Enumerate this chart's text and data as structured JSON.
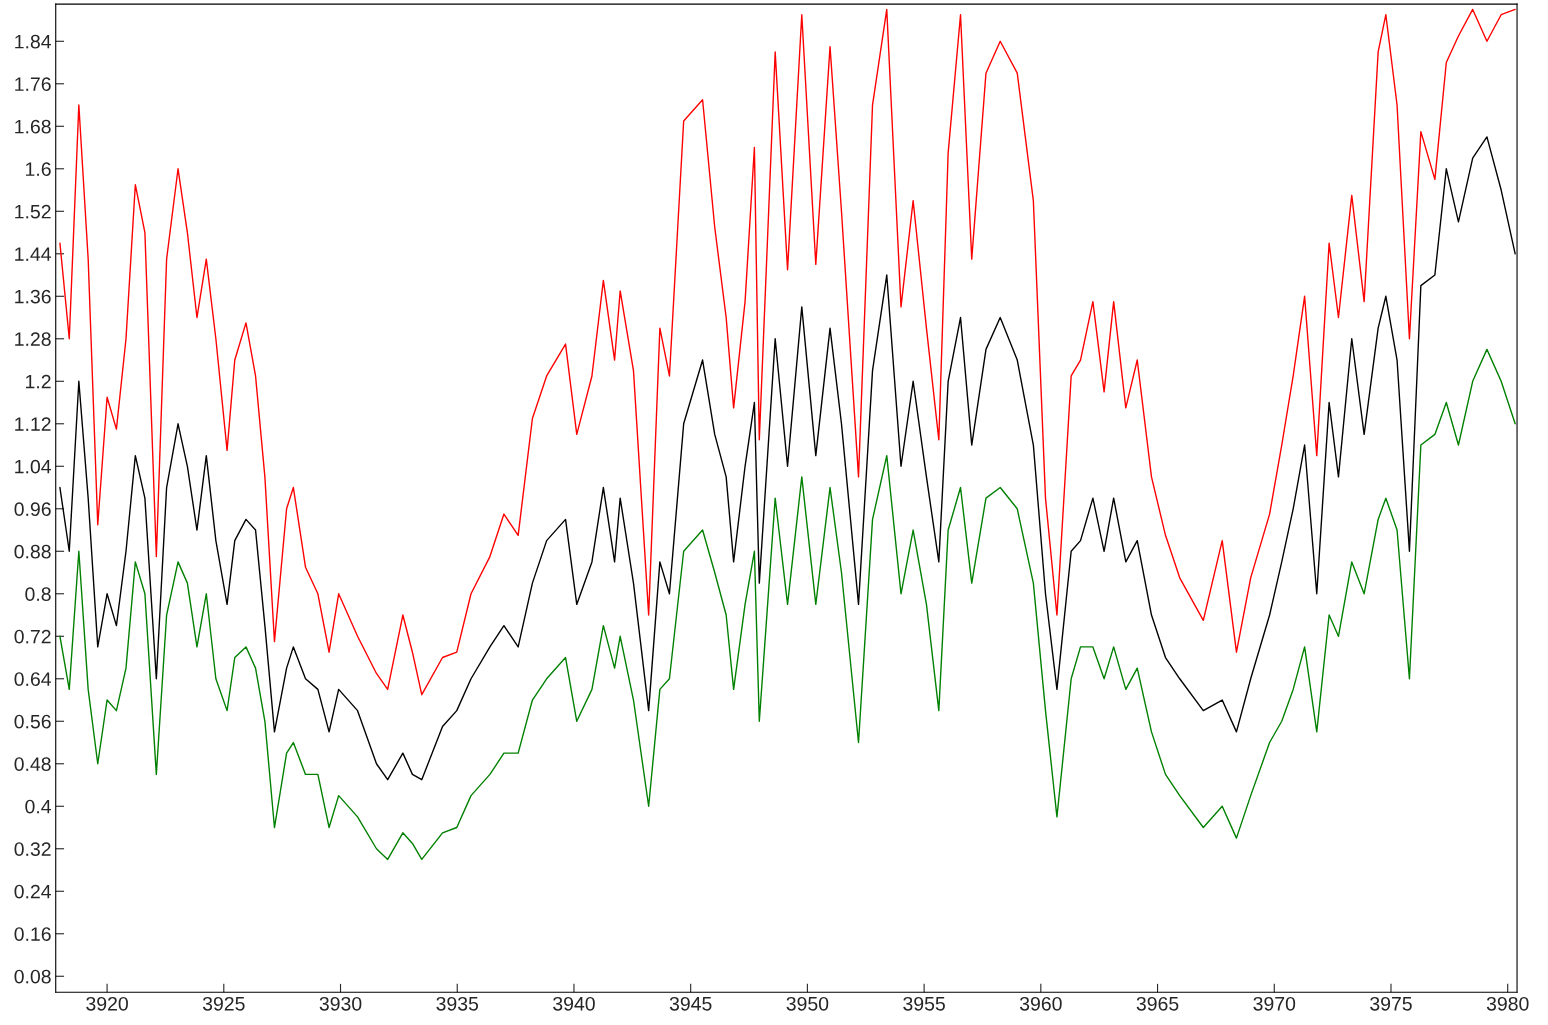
{
  "chart_data": {
    "type": "line",
    "x": [
      3917.98,
      3918.38,
      3918.79,
      3919.19,
      3919.6,
      3920,
      3920.4,
      3920.81,
      3921.21,
      3921.62,
      3922.11,
      3922.55,
      3923.04,
      3923.44,
      3923.85,
      3924.25,
      3924.66,
      3925.14,
      3925.47,
      3925.95,
      3926.36,
      3926.76,
      3927.17,
      3927.69,
      3927.98,
      3928.5,
      3929.03,
      3929.51,
      3929.92,
      3930.73,
      3931.54,
      3932.02,
      3932.67,
      3933.08,
      3933.48,
      3934.37,
      3934.98,
      3935.59,
      3936.4,
      3937,
      3937.61,
      3938.22,
      3938.83,
      3939.64,
      3940.12,
      3940.77,
      3941.26,
      3941.74,
      3941.98,
      3942.55,
      3943.2,
      3943.68,
      3944.09,
      3944.7,
      3945.51,
      3946.03,
      3946.52,
      3946.84,
      3947.33,
      3947.73,
      3947.94,
      3948.62,
      3949.15,
      3949.76,
      3950.36,
      3950.97,
      3951.46,
      3952.19,
      3952.79,
      3953.4,
      3954.01,
      3954.53,
      3955.1,
      3955.63,
      3956.03,
      3956.56,
      3957.04,
      3957.65,
      3958.26,
      3958.99,
      3959.68,
      3960.2,
      3960.69,
      3961.3,
      3961.7,
      3962.23,
      3962.71,
      3963.12,
      3963.64,
      3964.13,
      3964.74,
      3965.34,
      3965.95,
      3966.96,
      3967.77,
      3968.38,
      3968.99,
      3969.8,
      3970.32,
      3970.81,
      3971.3,
      3971.82,
      3972.35,
      3972.75,
      3973.32,
      3973.85,
      3974.45,
      3974.78,
      3975.26,
      3975.79,
      3976.28,
      3976.88,
      3977.37,
      3977.89,
      3978.5,
      3979.11,
      3979.72,
      3980.32
    ],
    "series": [
      {
        "color": "#ff0000",
        "values": [
          1.46,
          1.28,
          1.72,
          1.43,
          0.93,
          1.17,
          1.11,
          1.28,
          1.57,
          1.48,
          0.87,
          1.43,
          1.6,
          1.48,
          1.32,
          1.43,
          1.28,
          1.07,
          1.24,
          1.31,
          1.21,
          1.02,
          0.71,
          0.96,
          1.0,
          0.85,
          0.8,
          0.69,
          0.8,
          0.72,
          0.65,
          0.62,
          0.76,
          0.69,
          0.61,
          0.68,
          0.69,
          0.8,
          0.87,
          0.95,
          0.91,
          1.13,
          1.21,
          1.27,
          1.1,
          1.21,
          1.39,
          1.24,
          1.37,
          1.22,
          0.76,
          1.3,
          1.21,
          1.69,
          1.73,
          1.49,
          1.32,
          1.15,
          1.35,
          1.64,
          1.09,
          1.82,
          1.41,
          1.89,
          1.42,
          1.83,
          1.52,
          1.02,
          1.72,
          1.9,
          1.34,
          1.54,
          1.3,
          1.09,
          1.63,
          1.89,
          1.43,
          1.78,
          1.84,
          1.78,
          1.54,
          0.98,
          0.76,
          1.21,
          1.24,
          1.35,
          1.18,
          1.35,
          1.15,
          1.24,
          1.02,
          0.91,
          0.83,
          0.75,
          0.9,
          0.69,
          0.83,
          0.95,
          1.08,
          1.21,
          1.36,
          1.06,
          1.46,
          1.32,
          1.55,
          1.35,
          1.82,
          1.89,
          1.72,
          1.28,
          1.67,
          1.58,
          1.8,
          1.85,
          1.9,
          1.84,
          1.89,
          1.9
        ]
      },
      {
        "color": "#000000",
        "values": [
          1.0,
          0.88,
          1.2,
          0.98,
          0.7,
          0.8,
          0.74,
          0.88,
          1.06,
          0.98,
          0.64,
          1.0,
          1.12,
          1.04,
          0.92,
          1.06,
          0.9,
          0.78,
          0.9,
          0.94,
          0.92,
          0.74,
          0.54,
          0.66,
          0.7,
          0.64,
          0.62,
          0.54,
          0.62,
          0.58,
          0.48,
          0.45,
          0.5,
          0.46,
          0.45,
          0.55,
          0.58,
          0.64,
          0.7,
          0.74,
          0.7,
          0.82,
          0.9,
          0.94,
          0.78,
          0.86,
          1.0,
          0.86,
          0.98,
          0.82,
          0.58,
          0.86,
          0.8,
          1.12,
          1.24,
          1.1,
          1.02,
          0.86,
          1.04,
          1.16,
          0.82,
          1.28,
          1.04,
          1.34,
          1.06,
          1.3,
          1.12,
          0.78,
          1.22,
          1.4,
          1.04,
          1.2,
          1.02,
          0.86,
          1.2,
          1.32,
          1.08,
          1.26,
          1.32,
          1.24,
          1.08,
          0.8,
          0.62,
          0.88,
          0.9,
          0.98,
          0.88,
          0.98,
          0.86,
          0.9,
          0.76,
          0.68,
          0.64,
          0.58,
          0.6,
          0.54,
          0.64,
          0.76,
          0.86,
          0.96,
          1.08,
          0.8,
          1.16,
          1.02,
          1.28,
          1.1,
          1.3,
          1.36,
          1.24,
          0.88,
          1.38,
          1.4,
          1.6,
          1.5,
          1.62,
          1.66,
          1.56,
          1.44
        ]
      },
      {
        "color": "#008000",
        "values": [
          0.72,
          0.62,
          0.88,
          0.62,
          0.48,
          0.6,
          0.58,
          0.66,
          0.86,
          0.8,
          0.46,
          0.76,
          0.86,
          0.82,
          0.7,
          0.8,
          0.64,
          0.58,
          0.68,
          0.7,
          0.66,
          0.56,
          0.36,
          0.5,
          0.52,
          0.46,
          0.46,
          0.36,
          0.42,
          0.38,
          0.32,
          0.3,
          0.35,
          0.33,
          0.3,
          0.35,
          0.36,
          0.42,
          0.46,
          0.5,
          0.5,
          0.6,
          0.64,
          0.68,
          0.56,
          0.62,
          0.74,
          0.66,
          0.72,
          0.6,
          0.4,
          0.62,
          0.64,
          0.88,
          0.92,
          0.84,
          0.76,
          0.62,
          0.78,
          0.88,
          0.56,
          0.98,
          0.78,
          1.02,
          0.78,
          1.0,
          0.84,
          0.52,
          0.94,
          1.06,
          0.8,
          0.92,
          0.78,
          0.58,
          0.92,
          1.0,
          0.82,
          0.98,
          1.0,
          0.96,
          0.82,
          0.58,
          0.38,
          0.64,
          0.7,
          0.7,
          0.64,
          0.7,
          0.62,
          0.66,
          0.54,
          0.46,
          0.42,
          0.36,
          0.4,
          0.34,
          0.42,
          0.52,
          0.56,
          0.62,
          0.7,
          0.54,
          0.76,
          0.72,
          0.86,
          0.8,
          0.94,
          0.98,
          0.92,
          0.64,
          1.08,
          1.1,
          1.16,
          1.08,
          1.2,
          1.26,
          1.2,
          1.12
        ]
      }
    ],
    "xlim": [
      3917.8,
      3980.4
    ],
    "ylim": [
      0.05,
      1.91
    ],
    "xticks": [
      3920,
      3925,
      3930,
      3935,
      3940,
      3945,
      3950,
      3955,
      3960,
      3965,
      3970,
      3975,
      3980
    ],
    "yticks": [
      0.08,
      0.16,
      0.24,
      0.32,
      0.4,
      0.48,
      0.56,
      0.64,
      0.72,
      0.8,
      0.88,
      0.96,
      1.04,
      1.12,
      1.2,
      1.28,
      1.36,
      1.44,
      1.52,
      1.6,
      1.68,
      1.76,
      1.84
    ]
  }
}
